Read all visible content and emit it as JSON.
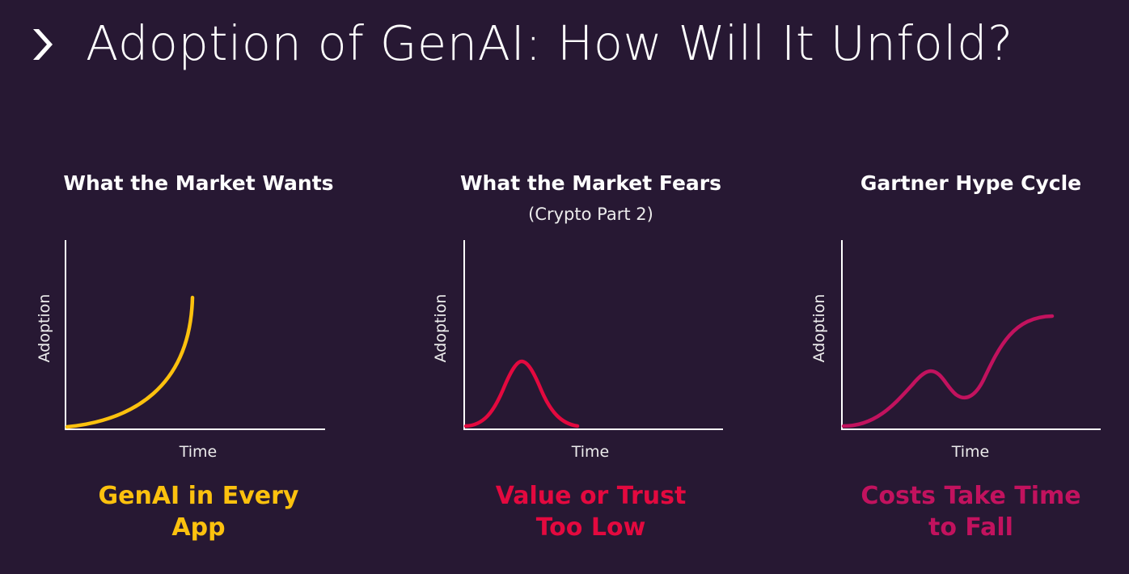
{
  "slide": {
    "title": "Adoption of GenAI: How Will It Unfold?",
    "bullet_icon": "chevron-right-icon"
  },
  "panels": [
    {
      "heading": "What the Market Wants",
      "subheading": "",
      "y_axis_label": "Adoption",
      "x_axis_label": "Time",
      "outcome": "GenAI in Every App",
      "curve_shape": "exponential growth",
      "curve_color": "#fcc10e",
      "outcome_color": "#fcc10e"
    },
    {
      "heading": "What the Market Fears",
      "subheading": "(Crypto Part 2)",
      "y_axis_label": "Adoption",
      "x_axis_label": "Time",
      "outcome": "Value or Trust Too Low",
      "curve_shape": "spike then collapse",
      "curve_color": "#e3093f",
      "outcome_color": "#e3093f"
    },
    {
      "heading": "Gartner Hype Cycle",
      "subheading": "",
      "y_axis_label": "Adoption",
      "x_axis_label": "Time",
      "outcome": "Costs Take Time to Fall",
      "curve_shape": "hype cycle",
      "curve_color": "#c2125e",
      "outcome_color": "#c2125e"
    }
  ],
  "colors": {
    "background": "#271833",
    "text": "#ffffff",
    "axis": "#ffffff"
  }
}
